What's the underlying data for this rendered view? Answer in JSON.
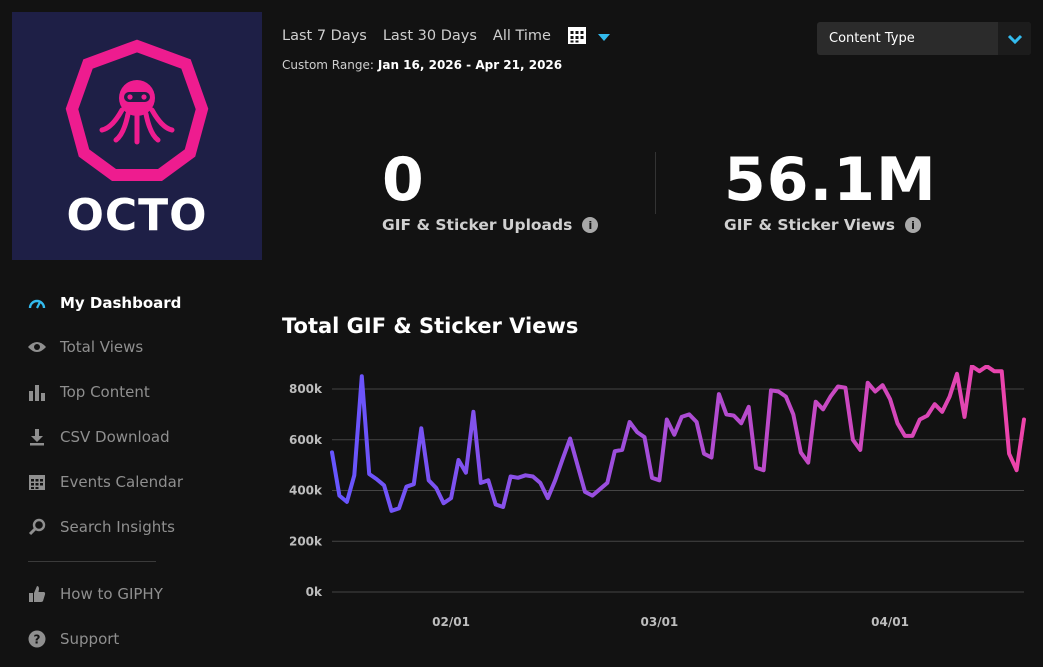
{
  "logo": {
    "text": "OCTO",
    "brand_color": "#ee1c8f",
    "bg_color": "#1e1f46"
  },
  "nav": {
    "items": [
      {
        "id": "my-dashboard",
        "label": "My Dashboard",
        "icon": "gauge-icon",
        "active": true
      },
      {
        "id": "total-views",
        "label": "Total Views",
        "icon": "eye-icon",
        "active": false
      },
      {
        "id": "top-content",
        "label": "Top Content",
        "icon": "bar-chart-icon",
        "active": false
      },
      {
        "id": "csv-download",
        "label": "CSV Download",
        "icon": "download-icon",
        "active": false
      },
      {
        "id": "events-calendar",
        "label": "Events Calendar",
        "icon": "calendar-icon",
        "active": false
      },
      {
        "id": "search-insights",
        "label": "Search Insights",
        "icon": "search-icon",
        "active": false
      },
      {
        "id": "how-to-giphy",
        "label": "How to GIPHY",
        "icon": "thumbs-up-icon",
        "active": false
      },
      {
        "id": "support",
        "label": "Support",
        "icon": "help-icon",
        "active": false
      }
    ],
    "accent_color": "#33bbee"
  },
  "filters": {
    "ranges": [
      "Last 7 Days",
      "Last 30 Days",
      "All Time"
    ],
    "custom_range_label": "Custom Range:",
    "custom_range_value": "Jan 16, 2026 - Apr 21, 2026",
    "content_type_label": "Content Type"
  },
  "stats": {
    "uploads": {
      "value": "0",
      "label": "GIF & Sticker Uploads"
    },
    "views": {
      "value": "56.1M",
      "label": "GIF & Sticker Views"
    }
  },
  "chart_data": {
    "type": "line",
    "title": "Total GIF & Sticker Views",
    "x_tick_labels": [
      "02/01",
      "03/01",
      "04/01"
    ],
    "x_ticks_day_index": [
      16,
      44,
      75
    ],
    "y_tick_labels": [
      "0k",
      "200k",
      "400k",
      "600k",
      "800k"
    ],
    "ylim": [
      0,
      800000
    ],
    "grid": true,
    "gradient": [
      "#6655ff",
      "#ee44aa"
    ],
    "series": [
      {
        "values": [
          550000,
          380000,
          355000,
          460000,
          850000,
          465000,
          445000,
          420000,
          320000,
          330000,
          415000,
          425000,
          645000,
          440000,
          410000,
          350000,
          370000,
          520000,
          470000,
          710000,
          430000,
          440000,
          345000,
          335000,
          455000,
          450000,
          460000,
          455000,
          430000,
          370000,
          440000,
          525000,
          605000,
          500000,
          395000,
          380000,
          405000,
          430000,
          555000,
          560000,
          670000,
          630000,
          610000,
          450000,
          440000,
          680000,
          620000,
          690000,
          700000,
          670000,
          545000,
          530000,
          780000,
          700000,
          695000,
          665000,
          730000,
          490000,
          480000,
          795000,
          790000,
          770000,
          700000,
          550000,
          510000,
          750000,
          720000,
          770000,
          810000,
          805000,
          600000,
          560000,
          825000,
          790000,
          815000,
          760000,
          665000,
          615000,
          615000,
          680000,
          695000,
          740000,
          710000,
          770000,
          860000,
          690000,
          890000,
          870000,
          890000,
          870000,
          870000,
          545000,
          480000,
          680000
        ]
      }
    ]
  }
}
